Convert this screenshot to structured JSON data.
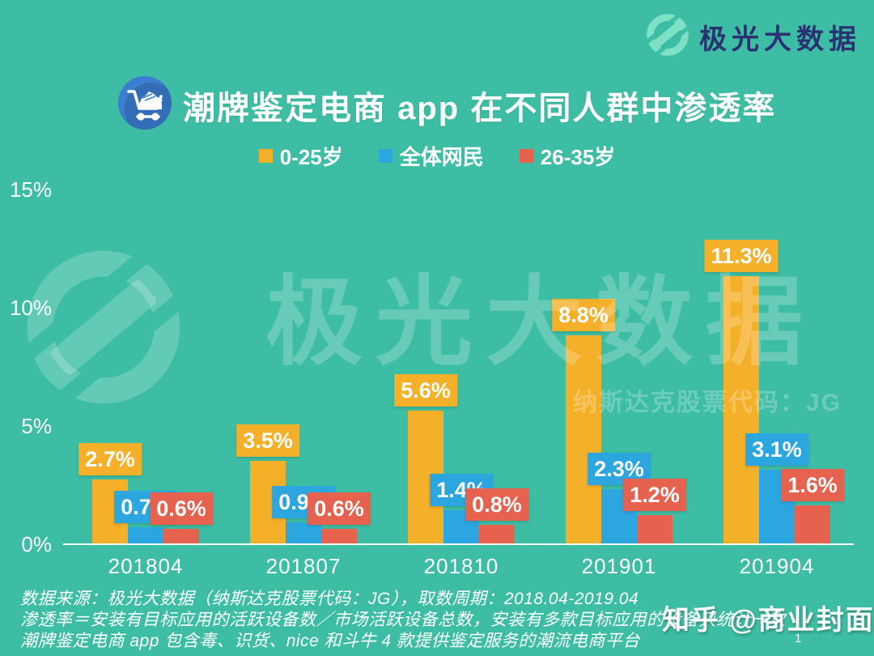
{
  "brand": {
    "logo_text": "极光大数据"
  },
  "header": {
    "title": "潮牌鉴定电商 app 在不同人群中渗透率"
  },
  "watermark": {
    "big_text": "极光大数据",
    "sub_text": "纳斯达克股票代码：JG"
  },
  "colors": {
    "background": "#3DBDA3",
    "series_yellow": "#F5B02A",
    "series_blue": "#2BA6DF",
    "series_red": "#E6614E",
    "brand_navy": "#2A3272",
    "title_icon_blue": "#3B7ECF"
  },
  "chart_data": {
    "type": "bar",
    "title": "潮牌鉴定电商 app 在不同人群中渗透率",
    "categories": [
      "201804",
      "201807",
      "201810",
      "201901",
      "201904"
    ],
    "series": [
      {
        "name": "0-25岁",
        "color": "#F5B02A",
        "values": [
          2.7,
          3.5,
          5.6,
          8.8,
          11.3
        ]
      },
      {
        "name": "全体网民",
        "color": "#2BA6DF",
        "values": [
          0.7,
          0.9,
          1.4,
          2.3,
          3.1
        ]
      },
      {
        "name": "26-35岁",
        "color": "#E6614E",
        "values": [
          0.6,
          0.6,
          0.8,
          1.2,
          1.6
        ]
      }
    ],
    "unit": "%",
    "ylim": [
      0,
      15
    ],
    "yticks": [
      0,
      5,
      10,
      15
    ],
    "ytick_labels": [
      "0%",
      "5%",
      "10%",
      "15%"
    ],
    "grid": false,
    "legend_position": "top",
    "data_labels": [
      "2.7%",
      "0.7%",
      "0.6%",
      "3.5%",
      "0.9%",
      "0.6%",
      "5.6%",
      "1.4%",
      "0.8%",
      "8.8%",
      "2.3%",
      "1.2%",
      "11.3%",
      "3.1%",
      "1.6%"
    ]
  },
  "footer": {
    "lines": [
      "数据来源：极光大数据（纳斯达克股票代码：JG），取数周期：2018.04-2019.04",
      "渗透率＝安装有目标应用的活跃设备数／市场活跃设备总数，安装有多款目标应用的设备只统计一次",
      "潮牌鉴定电商 app 包含毒、识货、nice 和斗牛 4 款提供鉴定服务的潮流电商平台"
    ]
  },
  "overlay": {
    "credit": "知乎 @商业封面",
    "page": "1"
  }
}
